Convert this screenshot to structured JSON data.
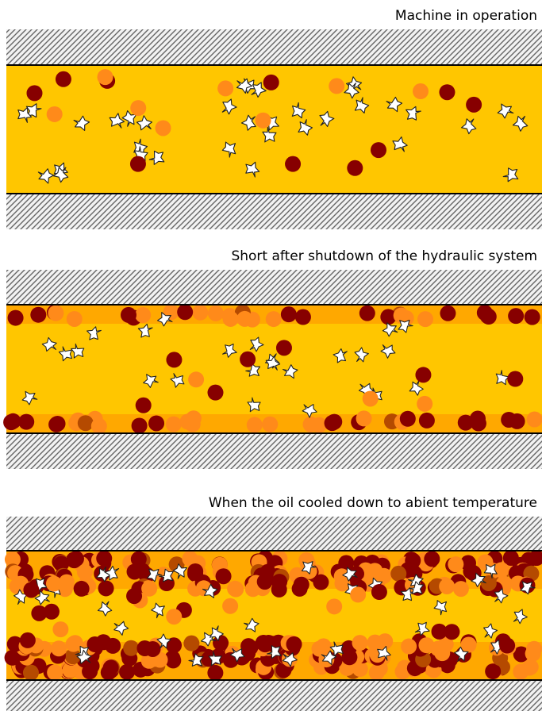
{
  "panels": [
    {
      "title": "Machine in operation",
      "stage": "operation"
    },
    {
      "title": "Short after shutdown of the hydraulic system",
      "stage": "shutdown"
    },
    {
      "title": "When the oil cooled down to abient temperature",
      "stage": "cooled"
    }
  ],
  "colors": {
    "oil": "#ffc600",
    "settled_band": "#ffa800",
    "deposit_orange": "#ff8a1a",
    "deposit_dark": "#870000",
    "deposit_brown": "#b54a00",
    "wall_hatch_light": "#f2f2f2",
    "wall_hatch_dark": "#555555"
  },
  "legend_icons": [
    "dirt-particle-icon",
    "orange-deposit-icon",
    "dark-red-deposit-icon"
  ]
}
